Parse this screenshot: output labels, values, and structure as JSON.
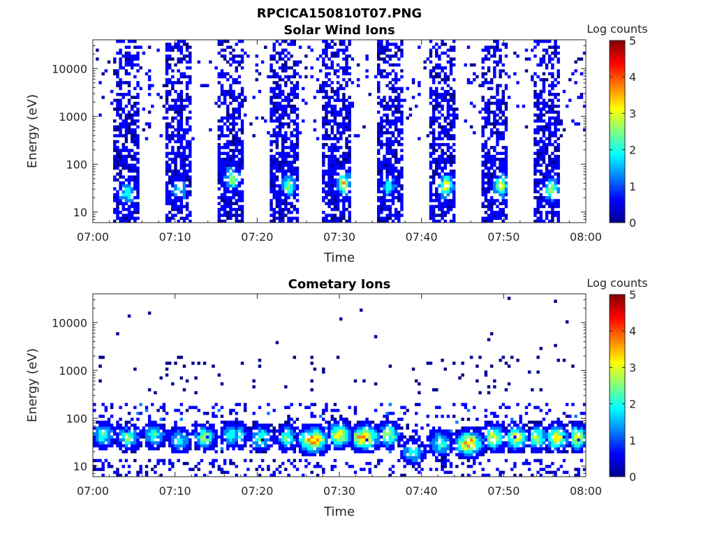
{
  "figure_title": "RPCICA150810T07.PNG",
  "colormap": [
    "#00008f",
    "#0000ff",
    "#0080ff",
    "#00ffff",
    "#80ff80",
    "#ffff00",
    "#ff8000",
    "#ff0000",
    "#800000"
  ],
  "chart_data": [
    {
      "type": "heatmap",
      "title": "Solar Wind Ions",
      "xlabel": "Time",
      "ylabel": "Energy (eV)",
      "x_ticks": [
        "07:00",
        "07:10",
        "07:20",
        "07:30",
        "07:40",
        "07:50",
        "08:00"
      ],
      "xlim_minutes": [
        0,
        60
      ],
      "y_scale": "log",
      "y_ticks": [
        "10",
        "100",
        "1000",
        "10000"
      ],
      "ylim": [
        6,
        40000
      ],
      "colorbar": {
        "label": "Log counts",
        "range": [
          0,
          5
        ],
        "ticks": [
          "0",
          "1",
          "2",
          "3",
          "4",
          "5"
        ]
      },
      "bands": [
        {
          "t_start": 2.5,
          "t_end": 5.5,
          "hot_t": 4.2,
          "hot_e": 25,
          "peak": 1.6
        },
        {
          "t_start": 9.0,
          "t_end": 12.0,
          "hot_t": 10.5,
          "hot_e": 30,
          "peak": 1.4
        },
        {
          "t_start": 15.3,
          "t_end": 18.5,
          "hot_t": 17.0,
          "hot_e": 50,
          "peak": 2.3
        },
        {
          "t_start": 21.7,
          "t_end": 25.0,
          "hot_t": 23.8,
          "hot_e": 35,
          "peak": 2.4
        },
        {
          "t_start": 28.0,
          "t_end": 31.5,
          "hot_t": 30.5,
          "hot_e": 40,
          "peak": 3.0
        },
        {
          "t_start": 34.5,
          "t_end": 37.8,
          "hot_t": 36.0,
          "hot_e": 35,
          "peak": 1.5
        },
        {
          "t_start": 40.8,
          "t_end": 44.0,
          "hot_t": 43.0,
          "hot_e": 35,
          "peak": 3.0
        },
        {
          "t_start": 47.3,
          "t_end": 50.5,
          "hot_t": 49.7,
          "hot_e": 35,
          "peak": 2.7
        },
        {
          "t_start": 53.7,
          "t_end": 56.8,
          "hot_t": 55.8,
          "hot_e": 30,
          "peak": 2.5
        }
      ]
    },
    {
      "type": "heatmap",
      "title": "Cometary Ions",
      "xlabel": "Time",
      "ylabel": "Energy (eV)",
      "x_ticks": [
        "07:00",
        "07:10",
        "07:20",
        "07:30",
        "07:40",
        "07:50",
        "08:00"
      ],
      "xlim_minutes": [
        0,
        60
      ],
      "y_scale": "log",
      "y_ticks": [
        "10",
        "100",
        "1000",
        "10000"
      ],
      "ylim": [
        6,
        40000
      ],
      "colorbar": {
        "label": "Log counts",
        "range": [
          0,
          5
        ],
        "ticks": [
          "0",
          "1",
          "2",
          "3",
          "4",
          "5"
        ]
      },
      "blobs": [
        {
          "t": 1.3,
          "e": 45,
          "w": 1.2,
          "peak": 2.3
        },
        {
          "t": 4.3,
          "e": 40,
          "w": 1.3,
          "peak": 2.5
        },
        {
          "t": 7.5,
          "e": 45,
          "w": 1.2,
          "peak": 2.2
        },
        {
          "t": 10.5,
          "e": 35,
          "w": 1.2,
          "peak": 2.0
        },
        {
          "t": 13.6,
          "e": 40,
          "w": 1.2,
          "peak": 2.6
        },
        {
          "t": 16.8,
          "e": 45,
          "w": 1.0,
          "peak": 2.3
        },
        {
          "t": 17.6,
          "e": 45,
          "w": 1.0,
          "peak": 2.5
        },
        {
          "t": 20.5,
          "e": 40,
          "w": 1.2,
          "peak": 2.4
        },
        {
          "t": 23.6,
          "e": 40,
          "w": 1.0,
          "peak": 2.6
        },
        {
          "t": 26.8,
          "e": 35,
          "w": 1.6,
          "peak": 4.0
        },
        {
          "t": 30.0,
          "e": 45,
          "w": 1.3,
          "peak": 3.6
        },
        {
          "t": 33.0,
          "e": 40,
          "w": 1.7,
          "peak": 3.8
        },
        {
          "t": 36.0,
          "e": 45,
          "w": 1.2,
          "peak": 2.8
        },
        {
          "t": 39.0,
          "e": 20,
          "w": 1.2,
          "peak": 2.2
        },
        {
          "t": 42.3,
          "e": 30,
          "w": 1.3,
          "peak": 2.3
        },
        {
          "t": 45.8,
          "e": 30,
          "w": 1.5,
          "peak": 3.8
        },
        {
          "t": 48.8,
          "e": 40,
          "w": 1.2,
          "peak": 3.3
        },
        {
          "t": 51.5,
          "e": 40,
          "w": 1.3,
          "peak": 3.3
        },
        {
          "t": 54.0,
          "e": 40,
          "w": 1.2,
          "peak": 3.0
        },
        {
          "t": 56.5,
          "e": 40,
          "w": 1.2,
          "peak": 3.4
        },
        {
          "t": 59.0,
          "e": 40,
          "w": 1.0,
          "peak": 3.4
        }
      ]
    }
  ]
}
